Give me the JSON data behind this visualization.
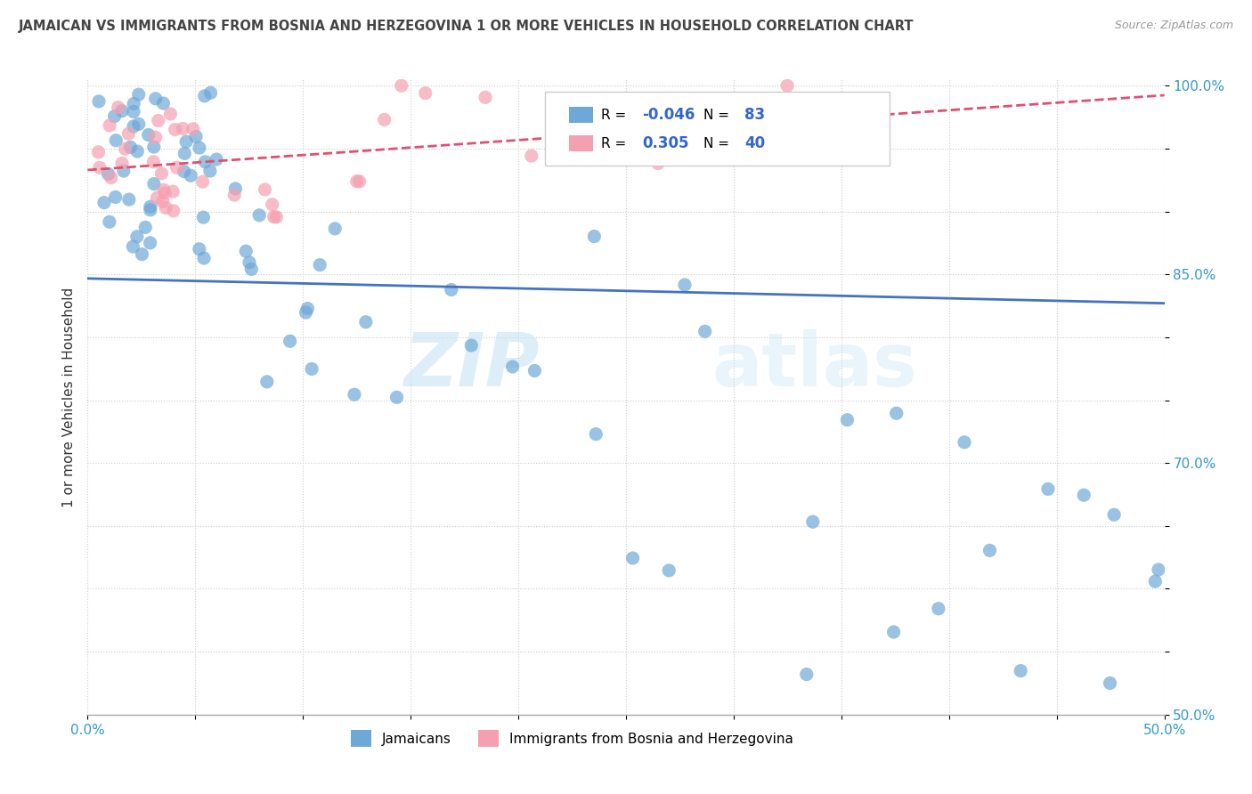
{
  "title": "JAMAICAN VS IMMIGRANTS FROM BOSNIA AND HERZEGOVINA 1 OR MORE VEHICLES IN HOUSEHOLD CORRELATION CHART",
  "source": "Source: ZipAtlas.com",
  "ylabel": "1 or more Vehicles in Household",
  "xlim": [
    0.0,
    0.5
  ],
  "ylim": [
    0.5,
    1.005
  ],
  "xticks": [
    0.0,
    0.05,
    0.1,
    0.15,
    0.2,
    0.25,
    0.3,
    0.35,
    0.4,
    0.45,
    0.5
  ],
  "xticklabels": [
    "0.0%",
    "",
    "",
    "",
    "",
    "",
    "",
    "",
    "",
    "",
    "50.0%"
  ],
  "yticks": [
    0.5,
    0.55,
    0.6,
    0.65,
    0.7,
    0.75,
    0.8,
    0.85,
    0.9,
    0.95,
    1.0
  ],
  "yticklabels": [
    "50.0%",
    "",
    "",
    "",
    "70.0%",
    "",
    "",
    "85.0%",
    "",
    "",
    "100.0%"
  ],
  "jamaicans_R": -0.046,
  "jamaicans_N": 83,
  "bosnia_R": 0.305,
  "bosnia_N": 40,
  "jamaicans_color": "#6ea8d8",
  "bosnia_color": "#f4a0b0",
  "jamaicans_line_color": "#4472c4",
  "bosnia_line_color": "#e05070",
  "legend_label_jamaicans": "Jamaicans",
  "legend_label_bosnia": "Immigrants from Bosnia and Herzegovina",
  "watermark_zip": "ZIP",
  "watermark_atlas": "atlas"
}
